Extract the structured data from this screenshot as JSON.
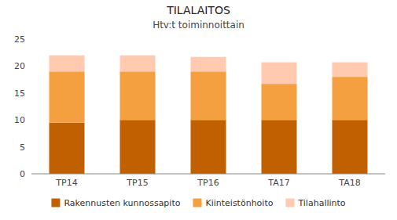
{
  "chart_data": {
    "type": "bar",
    "stacked": true,
    "title": "TILALAITOS",
    "subtitle": "Htv:t toiminnoittain",
    "categories": [
      "TP14",
      "TP15",
      "TP16",
      "TA17",
      "TA18"
    ],
    "series": [
      {
        "name": "Rakennusten kunnossapito",
        "color": "#C06000",
        "values": [
          9.5,
          10.0,
          10.0,
          10.0,
          10.0
        ]
      },
      {
        "name": "Kiinteistönhoito",
        "color": "#F5A040",
        "values": [
          9.5,
          9.0,
          9.0,
          6.7,
          8.0
        ]
      },
      {
        "name": "Tilahallinto",
        "color": "#FFCAB0",
        "values": [
          3.0,
          3.0,
          2.7,
          4.0,
          2.7
        ]
      }
    ],
    "ylim": [
      0,
      25
    ],
    "yticks": [
      0,
      5,
      10,
      15,
      20,
      25
    ],
    "grid": false,
    "legend": "bottom"
  }
}
